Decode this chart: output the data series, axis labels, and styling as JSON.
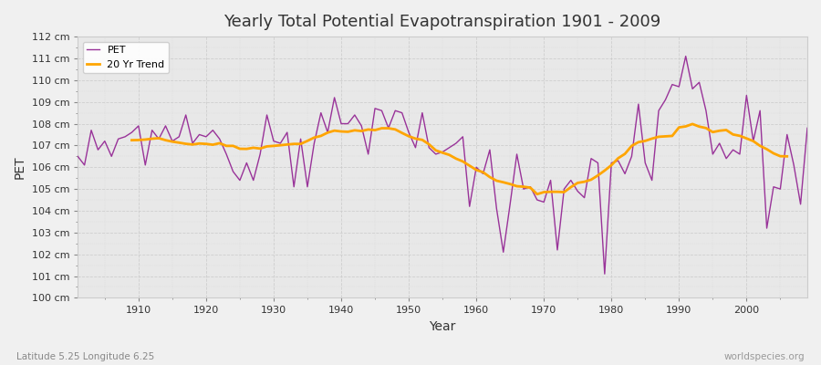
{
  "title": "Yearly Total Potential Evapotranspiration 1901 - 2009",
  "xlabel": "Year",
  "ylabel": "PET",
  "subtitle": "Latitude 5.25 Longitude 6.25",
  "watermark": "worldspecies.org",
  "pet_color": "#993399",
  "trend_color": "#ffa500",
  "bg_color": "#f0f0f0",
  "plot_bg_color": "#e8e8e8",
  "ylim": [
    100,
    112
  ],
  "xlim": [
    1901,
    2009
  ],
  "years": [
    1901,
    1902,
    1903,
    1904,
    1905,
    1906,
    1907,
    1908,
    1909,
    1910,
    1911,
    1912,
    1913,
    1914,
    1915,
    1916,
    1917,
    1918,
    1919,
    1920,
    1921,
    1922,
    1923,
    1924,
    1925,
    1926,
    1927,
    1928,
    1929,
    1930,
    1931,
    1932,
    1933,
    1934,
    1935,
    1936,
    1937,
    1938,
    1939,
    1940,
    1941,
    1942,
    1943,
    1944,
    1945,
    1946,
    1947,
    1948,
    1949,
    1950,
    1951,
    1952,
    1953,
    1954,
    1955,
    1956,
    1957,
    1958,
    1959,
    1960,
    1961,
    1962,
    1963,
    1964,
    1965,
    1966,
    1967,
    1968,
    1969,
    1970,
    1971,
    1972,
    1973,
    1974,
    1975,
    1976,
    1977,
    1978,
    1979,
    1980,
    1981,
    1982,
    1983,
    1984,
    1985,
    1986,
    1987,
    1988,
    1989,
    1990,
    1991,
    1992,
    1993,
    1994,
    1995,
    1996,
    1997,
    1998,
    1999,
    2000,
    2001,
    2002,
    2003,
    2004,
    2005,
    2006,
    2007,
    2008,
    2009
  ],
  "pet_values": [
    106.5,
    106.1,
    107.7,
    106.8,
    107.2,
    106.5,
    107.3,
    107.4,
    107.6,
    107.9,
    106.1,
    107.7,
    107.3,
    107.9,
    107.2,
    107.4,
    108.4,
    107.1,
    107.5,
    107.4,
    107.7,
    107.3,
    106.6,
    105.8,
    105.4,
    106.2,
    105.4,
    106.6,
    108.4,
    107.2,
    107.1,
    107.6,
    105.1,
    107.3,
    105.1,
    107.1,
    108.5,
    107.6,
    109.2,
    108.0,
    108.0,
    108.4,
    107.9,
    106.6,
    108.7,
    108.6,
    107.8,
    108.6,
    108.5,
    107.6,
    106.9,
    108.5,
    106.9,
    106.6,
    106.7,
    106.9,
    107.1,
    107.4,
    104.2,
    106.0,
    105.7,
    106.8,
    104.1,
    102.1,
    104.3,
    106.6,
    105.0,
    105.1,
    104.5,
    104.4,
    105.4,
    102.2,
    105.0,
    105.4,
    104.9,
    104.6,
    106.4,
    106.2,
    101.1,
    106.2,
    106.3,
    105.7,
    106.5,
    108.9,
    106.2,
    105.4,
    108.6,
    109.1,
    109.8,
    109.7,
    111.1,
    109.6,
    109.9,
    108.6,
    106.6,
    107.1,
    106.4,
    106.8,
    106.6,
    109.3,
    107.2,
    108.6,
    103.2,
    105.1,
    105.0,
    107.5,
    106.1,
    104.3,
    107.8
  ]
}
